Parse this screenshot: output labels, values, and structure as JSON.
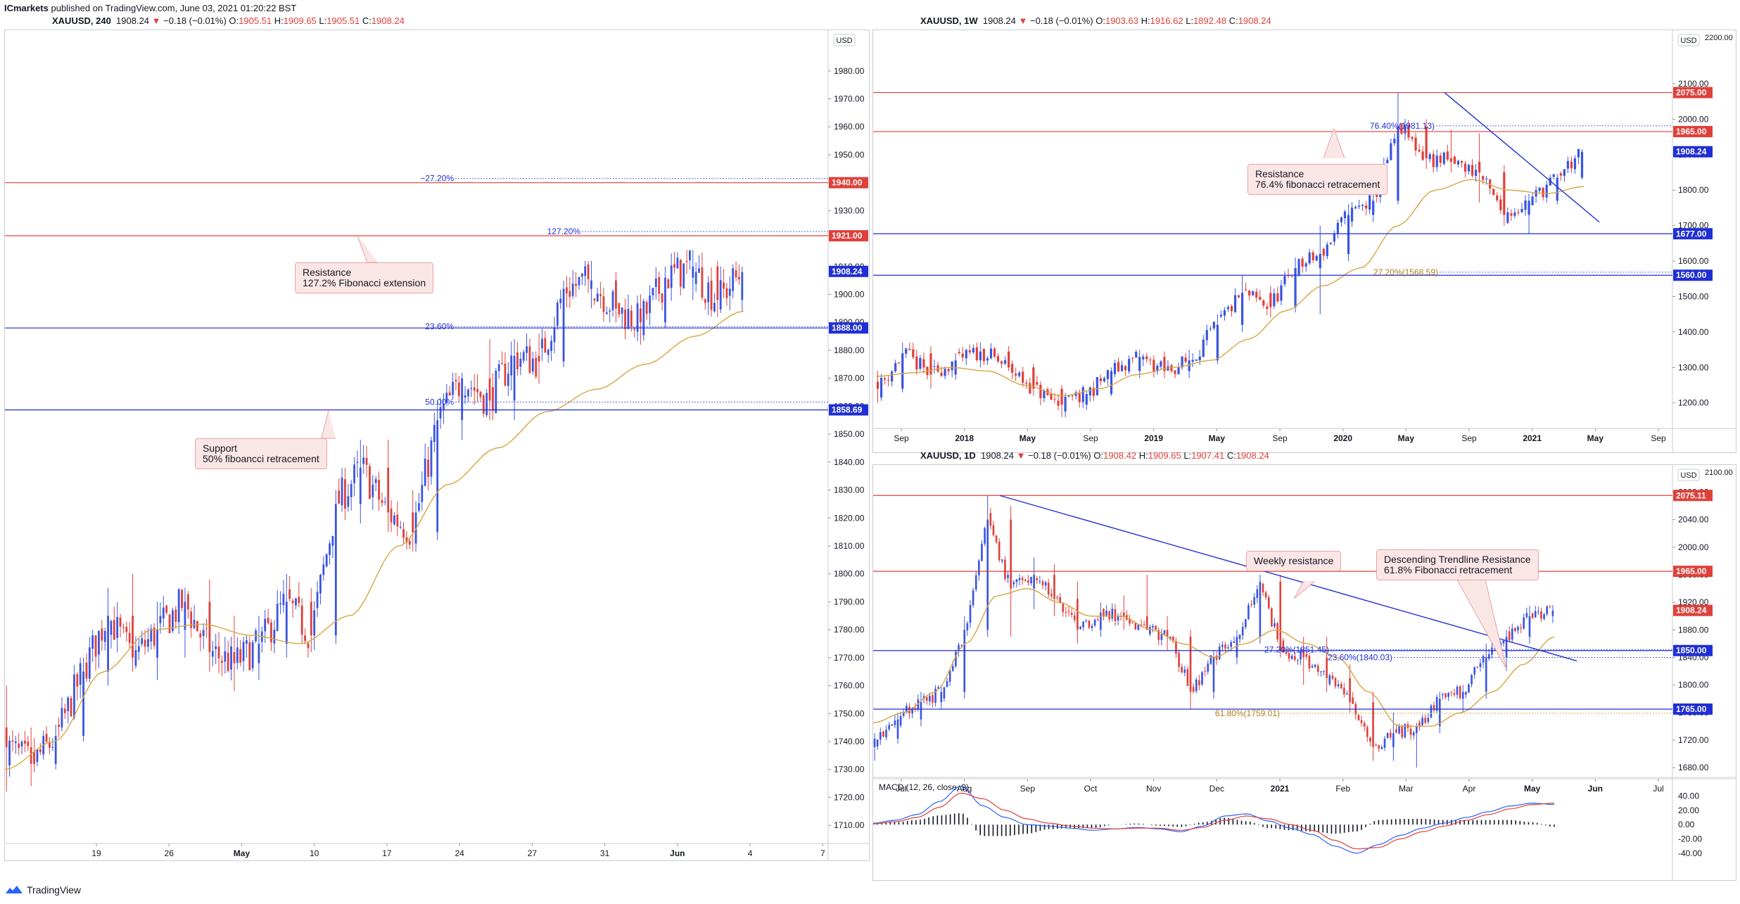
{
  "header": {
    "publisher": "ICmarkets",
    "published_text": " published on TradingView.com, June 03, 2021 01:20:22 BST",
    "main_title": {
      "symbol": "XAUUSD, 240",
      "price": "1908.24",
      "change": "−0.18 (−0.01%)",
      "o_label": "O:",
      "o": "1905.51",
      "h_label": "H:",
      "h": "1909.65",
      "l_label": "L:",
      "l": "1905.51",
      "c_label": "C:",
      "c": "1908.24"
    }
  },
  "footer": {
    "brand": "TradingView"
  },
  "colors": {
    "up": "#3a55e0",
    "down": "#e0403a",
    "ma": "#d9a441",
    "red_line": "#e0403a",
    "blue_line": "#1f2fd6",
    "note_bg": "#fbe6e6"
  },
  "charts": {
    "h4": {
      "title": {
        "symbol": "",
        "price": "",
        "change": ""
      },
      "currency": "USD",
      "ylim": [
        1705,
        1987
      ],
      "ticks": [
        "1980.00",
        "1970.00",
        "1960.00",
        "1950.00",
        "1940.00",
        "1930.00",
        "1920.00",
        "1910.00",
        "1900.00",
        "1890.00",
        "1880.00",
        "1870.00",
        "1860.00",
        "1850.00",
        "1840.00",
        "1830.00",
        "1820.00",
        "1810.00",
        "1800.00",
        "1790.00",
        "1780.00",
        "1770.00",
        "1760.00",
        "1750.00",
        "1740.00",
        "1730.00",
        "1720.00",
        "1710.00"
      ],
      "xlabels": [
        "19",
        "26",
        "May",
        "10",
        "17",
        "24",
        "27",
        "31",
        "Jun",
        "4",
        "7"
      ],
      "levels": [
        {
          "price": 1940.0,
          "label": "1940.00",
          "color": "red"
        },
        {
          "price": 1921.0,
          "label": "1921.00",
          "color": "red"
        },
        {
          "price": 1908.24,
          "label": "1908.24",
          "color": "blue"
        },
        {
          "price": 1888.0,
          "label": "1888.00",
          "color": "blue"
        },
        {
          "price": 1858.69,
          "label": "1858.69",
          "color": "blue"
        }
      ],
      "fib": [
        {
          "price": 1941.5,
          "label": "−27.20%"
        },
        {
          "price": 1922.5,
          "label": "127.20%"
        },
        {
          "price": 1888.5,
          "label": "23.60%"
        },
        {
          "price": 1861.5,
          "label": "50.00%"
        }
      ],
      "notes": [
        "Resistance\n127.2% Fibonacci extension",
        "Support\n50% fiboancci retracement"
      ],
      "anchors": [
        {
          "open": 1745,
          "high": 1760,
          "low": 1722,
          "close": 1738
        },
        {
          "open": 1738,
          "high": 1745,
          "low": 1724,
          "close": 1732
        },
        {
          "open": 1732,
          "high": 1746,
          "low": 1730,
          "close": 1742
        },
        {
          "open": 1742,
          "high": 1770,
          "low": 1740,
          "close": 1765
        },
        {
          "open": 1765,
          "high": 1795,
          "low": 1760,
          "close": 1785
        },
        {
          "open": 1785,
          "high": 1800,
          "low": 1765,
          "close": 1770
        },
        {
          "open": 1770,
          "high": 1790,
          "low": 1762,
          "close": 1780
        },
        {
          "open": 1780,
          "high": 1795,
          "low": 1770,
          "close": 1790
        },
        {
          "open": 1790,
          "high": 1798,
          "low": 1765,
          "close": 1772
        },
        {
          "open": 1772,
          "high": 1785,
          "low": 1758,
          "close": 1768
        },
        {
          "open": 1768,
          "high": 1785,
          "low": 1762,
          "close": 1775
        },
        {
          "open": 1775,
          "high": 1800,
          "low": 1770,
          "close": 1790
        },
        {
          "open": 1790,
          "high": 1795,
          "low": 1772,
          "close": 1778
        },
        {
          "open": 1778,
          "high": 1830,
          "low": 1775,
          "close": 1825
        },
        {
          "open": 1825,
          "high": 1848,
          "low": 1818,
          "close": 1838
        },
        {
          "open": 1838,
          "high": 1848,
          "low": 1815,
          "close": 1822
        },
        {
          "open": 1822,
          "high": 1830,
          "low": 1808,
          "close": 1815
        },
        {
          "open": 1815,
          "high": 1862,
          "low": 1812,
          "close": 1855
        },
        {
          "open": 1855,
          "high": 1872,
          "low": 1848,
          "close": 1870
        },
        {
          "open": 1870,
          "high": 1884,
          "low": 1855,
          "close": 1862
        },
        {
          "open": 1862,
          "high": 1884,
          "low": 1855,
          "close": 1878
        },
        {
          "open": 1878,
          "high": 1886,
          "low": 1868,
          "close": 1876
        },
        {
          "open": 1876,
          "high": 1905,
          "low": 1874,
          "close": 1902
        },
        {
          "open": 1902,
          "high": 1912,
          "low": 1895,
          "close": 1905
        },
        {
          "open": 1905,
          "high": 1908,
          "low": 1890,
          "close": 1895
        },
        {
          "open": 1895,
          "high": 1900,
          "low": 1882,
          "close": 1890
        },
        {
          "open": 1890,
          "high": 1910,
          "low": 1888,
          "close": 1906
        },
        {
          "open": 1906,
          "high": 1916,
          "low": 1898,
          "close": 1910
        },
        {
          "open": 1910,
          "high": 1912,
          "low": 1892,
          "close": 1898
        },
        {
          "open": 1898,
          "high": 1910,
          "low": 1894,
          "close": 1908
        }
      ],
      "ma_anchors": [
        1730,
        1740,
        1765,
        1780,
        1782,
        1778,
        1775,
        1785,
        1810,
        1832,
        1845,
        1858,
        1866,
        1875,
        1885,
        1894
      ]
    },
    "w1": {
      "title": {
        "symbol": "XAUUSD, 1W",
        "price": "1908.24",
        "change": "−0.18 (−0.01%)",
        "o_label": "O:",
        "o": "1903.63",
        "h_label": "H:",
        "h": "1916.62",
        "l_label": "L:",
        "l": "1892.48",
        "c_label": "C:",
        "c": "1908.24"
      },
      "currency": "USD",
      "ylim": [
        1140,
        2215
      ],
      "ticks": [
        "2100.00",
        "2000.00",
        "1900.00",
        "1800.00",
        "1700.00",
        "1600.00",
        "1500.00",
        "1400.00",
        "1300.00",
        "1200.00"
      ],
      "tick_top": "2200.00",
      "xlabels": [
        "Sep",
        "2018",
        "May",
        "Sep",
        "2019",
        "May",
        "Sep",
        "2020",
        "May",
        "Sep",
        "2021",
        "May",
        "Sep"
      ],
      "levels": [
        {
          "price": 2075.0,
          "label": "2075.00",
          "color": "red"
        },
        {
          "price": 1965.0,
          "label": "1965.00",
          "color": "red"
        },
        {
          "price": 1908.24,
          "label": "1908.24",
          "color": "blue"
        },
        {
          "price": 1677.0,
          "label": "1677.00",
          "color": "blue"
        },
        {
          "price": 1560.0,
          "label": "1560.00",
          "color": "blue"
        }
      ],
      "fib": [
        {
          "price": 1981.13,
          "label": "76.40%(1981.13)"
        },
        {
          "price": 1568.59,
          "label": "27.20%(1568.59)"
        }
      ],
      "notes": [
        "Resistance\n76.4% fibonacci retracement"
      ],
      "anchors": [
        {
          "open": 1260,
          "high": 1290,
          "low": 1200,
          "close": 1240
        },
        {
          "open": 1240,
          "high": 1370,
          "low": 1230,
          "close": 1340
        },
        {
          "open": 1340,
          "high": 1360,
          "low": 1240,
          "close": 1280
        },
        {
          "open": 1280,
          "high": 1340,
          "low": 1265,
          "close": 1320
        },
        {
          "open": 1320,
          "high": 1370,
          "low": 1300,
          "close": 1345
        },
        {
          "open": 1345,
          "high": 1360,
          "low": 1290,
          "close": 1300
        },
        {
          "open": 1300,
          "high": 1310,
          "low": 1220,
          "close": 1240
        },
        {
          "open": 1240,
          "high": 1250,
          "low": 1160,
          "close": 1195
        },
        {
          "open": 1195,
          "high": 1235,
          "low": 1180,
          "close": 1225
        },
        {
          "open": 1225,
          "high": 1300,
          "low": 1220,
          "close": 1290
        },
        {
          "open": 1290,
          "high": 1350,
          "low": 1270,
          "close": 1330
        },
        {
          "open": 1330,
          "high": 1345,
          "low": 1270,
          "close": 1290
        },
        {
          "open": 1290,
          "high": 1350,
          "low": 1270,
          "close": 1320
        },
        {
          "open": 1320,
          "high": 1450,
          "low": 1310,
          "close": 1420
        },
        {
          "open": 1420,
          "high": 1560,
          "low": 1400,
          "close": 1510
        },
        {
          "open": 1510,
          "high": 1530,
          "low": 1440,
          "close": 1470
        },
        {
          "open": 1470,
          "high": 1610,
          "low": 1455,
          "close": 1580
        },
        {
          "open": 1580,
          "high": 1700,
          "low": 1450,
          "close": 1620
        },
        {
          "open": 1620,
          "high": 1760,
          "low": 1600,
          "close": 1730
        },
        {
          "open": 1730,
          "high": 1800,
          "low": 1710,
          "close": 1770
        },
        {
          "open": 1770,
          "high": 2075,
          "low": 1760,
          "close": 1980
        },
        {
          "open": 1980,
          "high": 2000,
          "low": 1860,
          "close": 1890
        },
        {
          "open": 1890,
          "high": 1970,
          "low": 1850,
          "close": 1880
        },
        {
          "open": 1880,
          "high": 1960,
          "low": 1765,
          "close": 1850
        },
        {
          "open": 1850,
          "high": 1870,
          "low": 1700,
          "close": 1730
        },
        {
          "open": 1730,
          "high": 1790,
          "low": 1677,
          "close": 1770
        },
        {
          "open": 1770,
          "high": 1845,
          "low": 1760,
          "close": 1835
        },
        {
          "open": 1835,
          "high": 1916,
          "low": 1830,
          "close": 1908
        }
      ],
      "ma_anchors": [
        1275,
        1285,
        1300,
        1290,
        1250,
        1220,
        1240,
        1280,
        1300,
        1320,
        1380,
        1460,
        1530,
        1580,
        1700,
        1800,
        1830,
        1800,
        1790,
        1810
      ]
    },
    "d1": {
      "title": {
        "symbol": "XAUUSD, 1D",
        "price": "1908.24",
        "change": "−0.18 (−0.01%)",
        "o_label": "O:",
        "o": "1908.42",
        "h_label": "H:",
        "h": "1909.65",
        "l_label": "L:",
        "l": "1907.41",
        "c_label": "C:",
        "c": "1908.24"
      },
      "currency": "USD",
      "ylim": [
        1670,
        2105
      ],
      "ticks": [
        "2080.00",
        "2040.00",
        "2000.00",
        "1960.00",
        "1920.00",
        "1880.00",
        "1840.00",
        "1800.00",
        "1760.00",
        "1720.00",
        "1680.00"
      ],
      "tick_top": "2100.00",
      "xlabels": [
        "Jul",
        "Aug",
        "Sep",
        "Oct",
        "Nov",
        "Dec",
        "2021",
        "Feb",
        "Mar",
        "Apr",
        "May",
        "Jun",
        "Jul"
      ],
      "levels": [
        {
          "price": 2075.11,
          "label": "2075.11",
          "color": "red"
        },
        {
          "price": 1965.0,
          "label": "1965.00",
          "color": "red"
        },
        {
          "price": 1908.24,
          "label": "1908.24",
          "color": "red"
        },
        {
          "price": 1850.0,
          "label": "1850.00",
          "color": "blue"
        },
        {
          "price": 1765.0,
          "label": "1765.00",
          "color": "blue"
        }
      ],
      "fib": [
        {
          "price": 1840.03,
          "label": "23.60%(1840.03)"
        },
        {
          "price": 1851.45,
          "label": "27.20%(1851.45)"
        },
        {
          "price": 1759.01,
          "label": "61.80%(1759.01)"
        }
      ],
      "notes": [
        "Weekly resistance",
        "Descending Trendline Resistance\n61.8% Fibonacci retracement"
      ],
      "anchors": [
        {
          "open": 1710,
          "high": 1730,
          "low": 1690,
          "close": 1722
        },
        {
          "open": 1722,
          "high": 1760,
          "low": 1715,
          "close": 1750
        },
        {
          "open": 1750,
          "high": 1790,
          "low": 1740,
          "close": 1775
        },
        {
          "open": 1775,
          "high": 1800,
          "low": 1765,
          "close": 1790
        },
        {
          "open": 1790,
          "high": 1900,
          "low": 1780,
          "close": 1880
        },
        {
          "open": 1880,
          "high": 2075,
          "low": 1870,
          "close": 2040
        },
        {
          "open": 2040,
          "high": 2060,
          "low": 1870,
          "close": 1940
        },
        {
          "open": 1940,
          "high": 1985,
          "low": 1910,
          "close": 1960
        },
        {
          "open": 1960,
          "high": 1975,
          "low": 1900,
          "close": 1925
        },
        {
          "open": 1925,
          "high": 1950,
          "low": 1860,
          "close": 1880
        },
        {
          "open": 1880,
          "high": 1920,
          "low": 1870,
          "close": 1905
        },
        {
          "open": 1905,
          "high": 1930,
          "low": 1880,
          "close": 1900
        },
        {
          "open": 1900,
          "high": 1960,
          "low": 1890,
          "close": 1880
        },
        {
          "open": 1880,
          "high": 1900,
          "low": 1850,
          "close": 1870
        },
        {
          "open": 1870,
          "high": 1880,
          "low": 1765,
          "close": 1790
        },
        {
          "open": 1790,
          "high": 1850,
          "low": 1780,
          "close": 1840
        },
        {
          "open": 1840,
          "high": 1880,
          "low": 1830,
          "close": 1870
        },
        {
          "open": 1870,
          "high": 1960,
          "low": 1860,
          "close": 1950
        },
        {
          "open": 1950,
          "high": 1960,
          "low": 1840,
          "close": 1850
        },
        {
          "open": 1850,
          "high": 1870,
          "low": 1800,
          "close": 1840
        },
        {
          "open": 1840,
          "high": 1870,
          "low": 1790,
          "close": 1810
        },
        {
          "open": 1810,
          "high": 1830,
          "low": 1760,
          "close": 1775
        },
        {
          "open": 1775,
          "high": 1790,
          "low": 1690,
          "close": 1710
        },
        {
          "open": 1710,
          "high": 1760,
          "low": 1690,
          "close": 1730
        },
        {
          "open": 1730,
          "high": 1745,
          "low": 1680,
          "close": 1740
        },
        {
          "open": 1740,
          "high": 1790,
          "low": 1730,
          "close": 1780
        },
        {
          "open": 1780,
          "high": 1800,
          "low": 1760,
          "close": 1790
        },
        {
          "open": 1790,
          "high": 1860,
          "low": 1780,
          "close": 1840
        },
        {
          "open": 1840,
          "high": 1880,
          "low": 1820,
          "close": 1870
        },
        {
          "open": 1870,
          "high": 1915,
          "low": 1860,
          "close": 1900
        },
        {
          "open": 1900,
          "high": 1916,
          "low": 1890,
          "close": 1908
        }
      ],
      "ma_anchors": [
        1745,
        1760,
        1790,
        1860,
        1930,
        1940,
        1920,
        1900,
        1900,
        1880,
        1860,
        1840,
        1860,
        1880,
        1860,
        1840,
        1790,
        1740,
        1740,
        1760,
        1790,
        1830,
        1870
      ],
      "macd": {
        "label": "MACD (12, 26, close, 9)",
        "ylim": [
          -48,
          62
        ],
        "ticks": [
          "40.00",
          "20.00",
          "0.00",
          "-20.00",
          "-40.00"
        ],
        "macd_anchors": [
          2,
          6,
          14,
          32,
          54,
          26,
          10,
          0,
          -2,
          -5,
          -8,
          -6,
          -4,
          -6,
          -10,
          -2,
          12,
          15,
          5,
          -5,
          -14,
          -30,
          -40,
          -28,
          -15,
          -5,
          2,
          10,
          18,
          26,
          30,
          28
        ],
        "signal_anchors": [
          1,
          4,
          10,
          24,
          44,
          36,
          20,
          8,
          2,
          -2,
          -5,
          -6,
          -5,
          -5,
          -8,
          -4,
          6,
          12,
          8,
          0,
          -8,
          -22,
          -34,
          -32,
          -20,
          -10,
          -2,
          6,
          14,
          22,
          28,
          30
        ]
      }
    }
  }
}
